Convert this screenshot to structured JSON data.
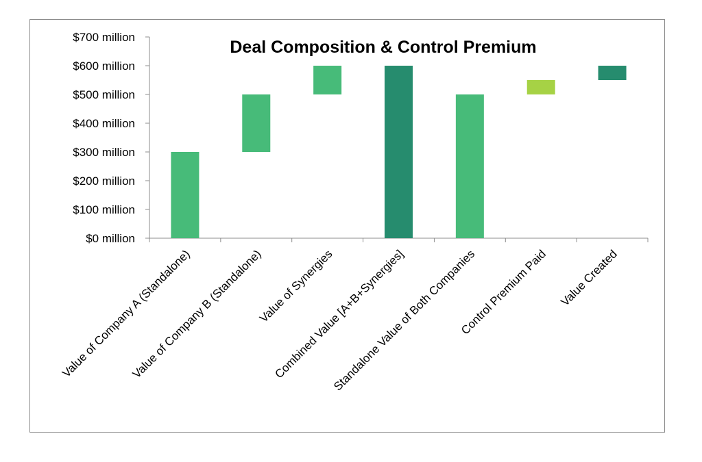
{
  "chart_data": {
    "type": "bar",
    "subtype": "waterfall",
    "title": "Deal Composition & Control Premium",
    "xlabel": "",
    "ylabel": "",
    "ylim": [
      0,
      700
    ],
    "y_tick_values": [
      0,
      100,
      200,
      300,
      400,
      500,
      600,
      700
    ],
    "y_tick_labels": [
      "$0 million",
      "$100 million",
      "$200 million",
      "$300 million",
      "$400 million",
      "$500 million",
      "$600 million",
      "$700 million"
    ],
    "grid": false,
    "legend": "none",
    "categories": [
      "Value of Company A (Standalone)",
      "Value of Company B (Standalone)",
      "Value of Synergies",
      "Combined Value [A+B+Synergies]",
      "Standalone Value of Both Companies",
      "Control Premium Paid",
      "Value Created"
    ],
    "bars": [
      {
        "base": 0,
        "top": 300,
        "color": "#47bb79"
      },
      {
        "base": 300,
        "top": 500,
        "color": "#47bb79"
      },
      {
        "base": 500,
        "top": 600,
        "color": "#47bb79"
      },
      {
        "base": 0,
        "top": 600,
        "color": "#268c6e"
      },
      {
        "base": 0,
        "top": 500,
        "color": "#47bb79"
      },
      {
        "base": 500,
        "top": 550,
        "color": "#a6d245"
      },
      {
        "base": 550,
        "top": 600,
        "color": "#268c6e"
      }
    ]
  }
}
